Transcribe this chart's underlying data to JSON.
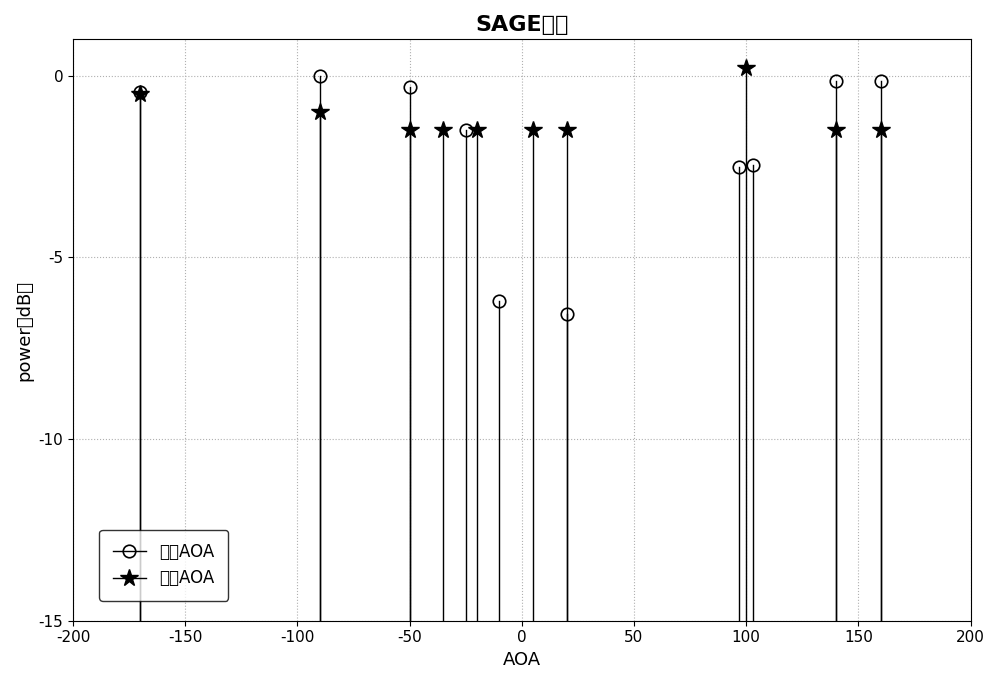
{
  "title": "SAGE算法",
  "xlabel": "AOA",
  "ylabel": "power（dB）",
  "xlim": [
    -200,
    200
  ],
  "ylim": [
    -15,
    1
  ],
  "yticks": [
    0,
    -5,
    -10,
    -15
  ],
  "xticks": [
    -200,
    -150,
    -100,
    -50,
    0,
    50,
    100,
    150,
    200
  ],
  "actual_aoa": {
    "x": [
      -170,
      -90,
      -50,
      -25,
      -10,
      20,
      97,
      103,
      140,
      160
    ],
    "y": [
      -0.45,
      0.0,
      -0.3,
      -1.5,
      -6.2,
      -6.55,
      -2.5,
      -2.45,
      -0.15,
      -0.15
    ],
    "label": "实际AOA",
    "marker": "o",
    "color": "black",
    "markersize": 9,
    "linewidth": 1.0
  },
  "estimated_aoa": {
    "x": [
      -170,
      -90,
      -50,
      -35,
      -20,
      5,
      20,
      100,
      140,
      160
    ],
    "y": [
      -0.5,
      -1.0,
      -1.5,
      -1.5,
      -1.5,
      -1.5,
      -1.5,
      0.2,
      -1.5,
      -1.5
    ],
    "label": "估计AOA",
    "marker": "*",
    "color": "black",
    "markersize": 13,
    "linewidth": 1.0
  },
  "grid_color": "#b0b0b0",
  "grid_linestyle": ":",
  "grid_alpha": 1.0,
  "bg_color": "white",
  "title_fontsize": 16,
  "axis_fontsize": 13,
  "tick_fontsize": 11,
  "legend_fontsize": 12
}
